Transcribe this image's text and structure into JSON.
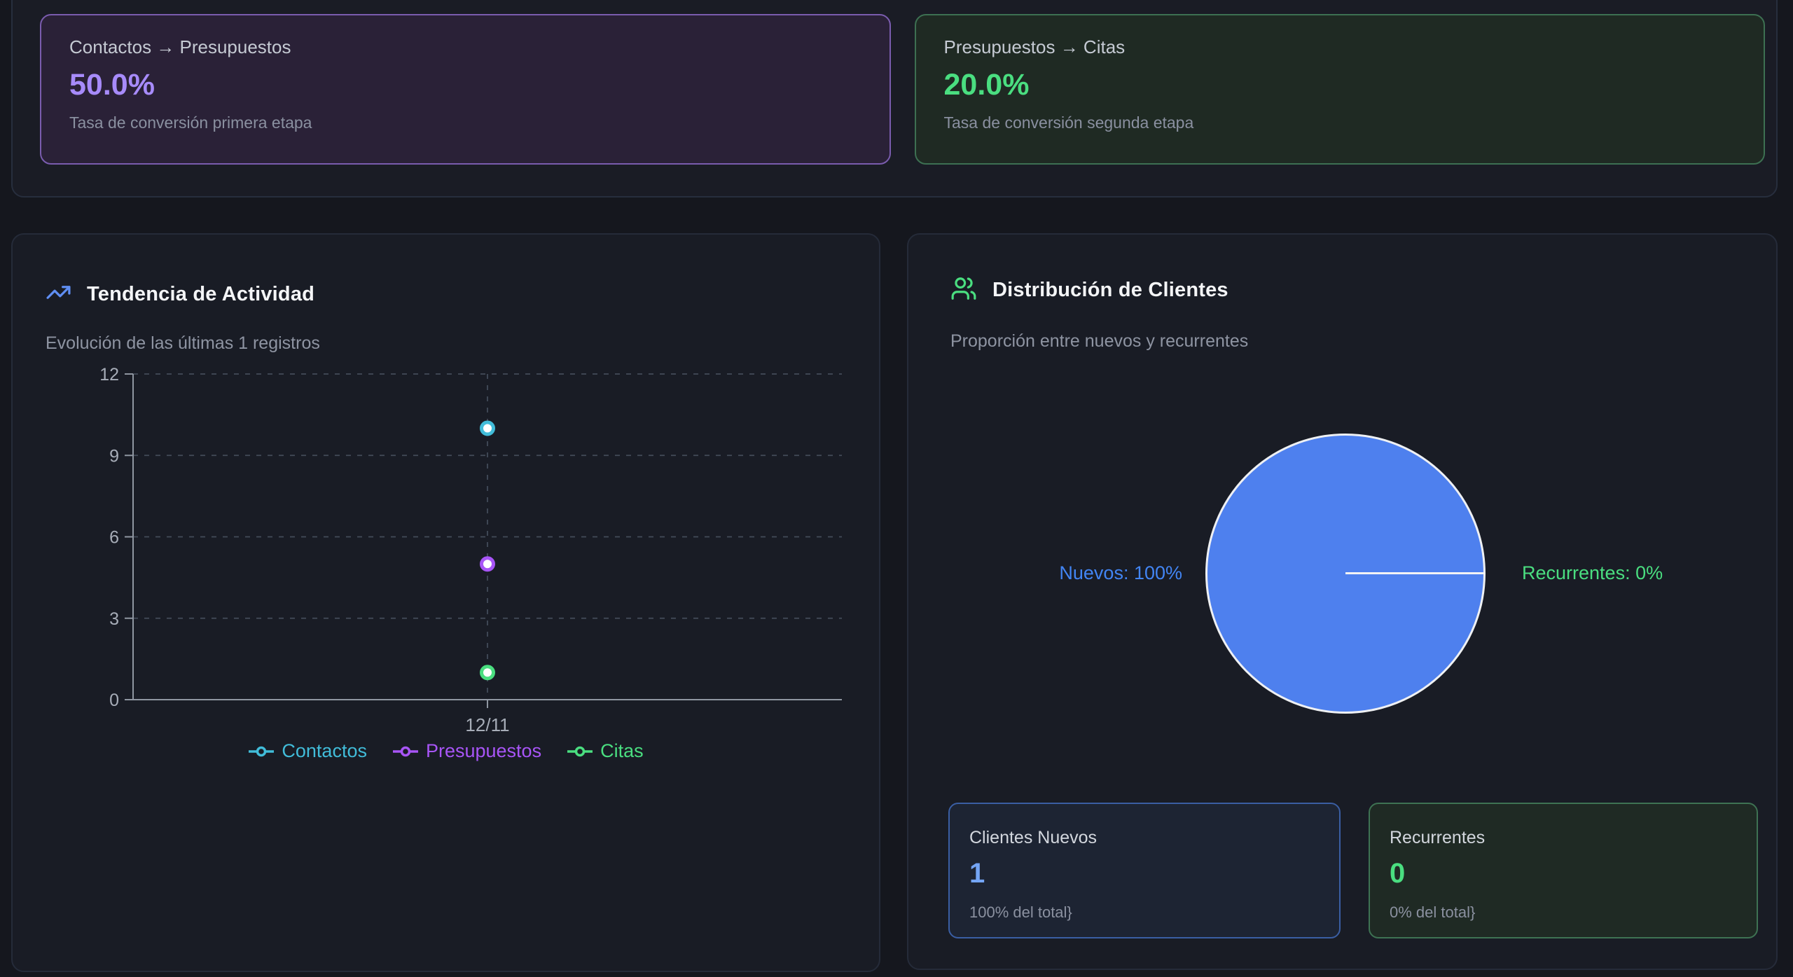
{
  "theme": {
    "page_bg": "#15171e",
    "panel_bg": "#191c25",
    "accent_purple": "#a78bfa",
    "accent_green": "#4ade80",
    "accent_blue": "#74a5f5",
    "pie_blue": "#4e80ee"
  },
  "funnel_section": {
    "cards": [
      {
        "title": "Contactos → Presupuestos",
        "value": "50.0%",
        "subtitle": "Tasa de conversión primera etapa",
        "accent": "#a78bfa"
      },
      {
        "title": "Presupuestos → Citas",
        "value": "20.0%",
        "subtitle": "Tasa de conversión segunda etapa",
        "accent": "#4ade80"
      }
    ]
  },
  "activity_panel": {
    "icon": "trending-up-icon",
    "title": "Tendencia de Actividad",
    "subtitle": "Evolución de las últimas 1 registros"
  },
  "distribution_panel": {
    "icon": "users-icon",
    "title": "Distribución de Clientes",
    "subtitle": "Proporción entre nuevos y recurrentes",
    "stats": [
      {
        "title": "Clientes Nuevos",
        "value": "1",
        "caption": "100% del total}",
        "accent": "#74a5f5"
      },
      {
        "title": "Recurrentes",
        "value": "0",
        "caption": "0% del total}",
        "accent": "#4ade80"
      }
    ]
  },
  "chart_data": [
    {
      "type": "line",
      "title": "Tendencia de Actividad",
      "x": [
        "12/11"
      ],
      "series": [
        {
          "name": "Contactos",
          "color": "#41bcd9",
          "values": [
            10
          ]
        },
        {
          "name": "Presupuestos",
          "color": "#a855f7",
          "values": [
            5
          ]
        },
        {
          "name": "Citas",
          "color": "#4ade80",
          "values": [
            1
          ]
        }
      ],
      "ylim": [
        0,
        12
      ],
      "yticks": [
        0,
        3,
        6,
        9,
        12
      ],
      "grid": "dashed",
      "legend_position": "bottom",
      "point_style": "white-filled-ring"
    },
    {
      "type": "pie",
      "title": "Distribución de Clientes",
      "slices": [
        {
          "label": "Nuevos",
          "pct": 100,
          "color": "#4e80ee",
          "label_color": "#4285f4"
        },
        {
          "label": "Recurrentes",
          "pct": 0,
          "color": "#4ade80",
          "label_color": "#4ade80"
        }
      ],
      "stroke": "#ffffff"
    }
  ]
}
